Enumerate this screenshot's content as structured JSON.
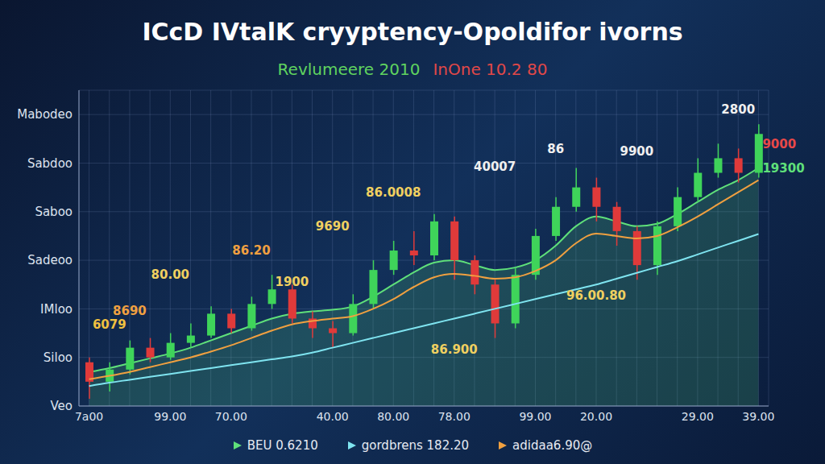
{
  "chart_data": {
    "type": "candlestick",
    "title": "ICcD IVtalK cryyptency-Opoldifor ivorns",
    "subtitle": [
      {
        "text": "Revlumeere 2010",
        "color": "#5fd35f"
      },
      {
        "text": "InOne 10.2 80",
        "color": "#e04848"
      }
    ],
    "categories": [
      "7a00",
      null,
      null,
      null,
      "99.00",
      null,
      null,
      "70.00",
      null,
      null,
      null,
      null,
      "40.00",
      null,
      null,
      "80.00",
      null,
      null,
      "78.00",
      null,
      null,
      null,
      "99.00",
      null,
      null,
      "20.00",
      null,
      null,
      null,
      null,
      "29.00",
      null,
      null,
      "39.00"
    ],
    "candles": {
      "open": [
        90,
        50,
        75,
        120,
        100,
        130,
        145,
        190,
        160,
        210,
        240,
        180,
        160,
        150,
        210,
        280,
        320,
        310,
        380,
        300,
        250,
        170,
        270,
        350,
        410,
        450,
        410,
        360,
        290,
        370,
        430,
        480,
        510,
        480
      ],
      "close": [
        50,
        75,
        120,
        100,
        130,
        145,
        190,
        160,
        210,
        240,
        180,
        160,
        150,
        210,
        280,
        320,
        310,
        380,
        300,
        250,
        170,
        270,
        350,
        410,
        450,
        410,
        360,
        290,
        370,
        430,
        480,
        510,
        480,
        560
      ],
      "high": [
        100,
        90,
        135,
        140,
        150,
        170,
        205,
        200,
        225,
        270,
        250,
        195,
        175,
        230,
        300,
        340,
        360,
        395,
        390,
        310,
        260,
        285,
        365,
        430,
        490,
        470,
        420,
        370,
        380,
        450,
        510,
        540,
        530,
        580
      ],
      "low": [
        15,
        30,
        65,
        90,
        95,
        120,
        140,
        150,
        155,
        200,
        170,
        140,
        120,
        145,
        200,
        270,
        290,
        300,
        260,
        230,
        140,
        160,
        260,
        340,
        400,
        380,
        330,
        260,
        270,
        360,
        420,
        470,
        460,
        470
      ],
      "colors": [
        "#e03a3a",
        "#3fd45a",
        "#3fd45a",
        "#e03a3a",
        "#3fd45a",
        "#3fd45a",
        "#3fd45a",
        "#e03a3a",
        "#3fd45a",
        "#3fd45a",
        "#e03a3a",
        "#e03a3a",
        "#e03a3a",
        "#3fd45a",
        "#3fd45a",
        "#3fd45a",
        "#e03a3a",
        "#3fd45a",
        "#e03a3a",
        "#e03a3a",
        "#e03a3a",
        "#3fd45a",
        "#3fd45a",
        "#3fd45a",
        "#3fd45a",
        "#e03a3a",
        "#e03a3a",
        "#e03a3a",
        "#3fd45a",
        "#3fd45a",
        "#3fd45a",
        "#3fd45a",
        "#e03a3a",
        "#3fd45a"
      ]
    },
    "series": [
      {
        "name": "BEU 0.6210",
        "type": "area",
        "color": "#5fe07a",
        "values": [
          70,
          78,
          88,
          98,
          108,
          120,
          135,
          150,
          165,
          180,
          190,
          195,
          198,
          205,
          225,
          250,
          275,
          295,
          300,
          290,
          280,
          285,
          300,
          330,
          370,
          390,
          380,
          370,
          375,
          395,
          420,
          445,
          465,
          490
        ]
      },
      {
        "name": "gordbrens 182.20",
        "type": "line",
        "color": "#7fe4f0",
        "values": [
          41,
          48,
          54,
          60,
          66,
          72,
          78,
          84,
          90,
          96,
          102,
          110,
          120,
          130,
          140,
          150,
          160,
          170,
          180,
          190,
          200,
          210,
          220,
          230,
          240,
          250,
          262,
          274,
          286,
          298,
          312,
          326,
          340,
          354
        ]
      },
      {
        "name": "adidaa6.90@",
        "type": "line",
        "color": "#f0a040",
        "values": [
          55,
          62,
          70,
          80,
          90,
          100,
          112,
          125,
          140,
          155,
          168,
          175,
          180,
          185,
          200,
          220,
          245,
          265,
          272,
          268,
          262,
          265,
          278,
          300,
          335,
          355,
          350,
          345,
          350,
          368,
          390,
          415,
          440,
          465
        ]
      }
    ],
    "annotations": [
      {
        "text": "6079",
        "x": 1,
        "y": 168,
        "color": "#f0c040"
      },
      {
        "text": "8690",
        "x": 2,
        "y": 196,
        "color": "#f0a040"
      },
      {
        "text": "80.00",
        "x": 4,
        "y": 270,
        "color": "#f0d060"
      },
      {
        "text": "86.20",
        "x": 8,
        "y": 321,
        "color": "#f0a040"
      },
      {
        "text": "1900",
        "x": 10,
        "y": 256,
        "color": "#f0d060"
      },
      {
        "text": "9690",
        "x": 12,
        "y": 370,
        "color": "#f0d060"
      },
      {
        "text": "86.0008",
        "x": 15,
        "y": 440,
        "color": "#f0d060"
      },
      {
        "text": "86.900",
        "x": 18,
        "y": 116,
        "color": "#f0d060"
      },
      {
        "text": "40007",
        "x": 20,
        "y": 493,
        "color": "#f0f0f0"
      },
      {
        "text": "86",
        "x": 23,
        "y": 530,
        "color": "#f0f0f0"
      },
      {
        "text": "96.00.80",
        "x": 25,
        "y": 227,
        "color": "#f0d060"
      },
      {
        "text": "9900",
        "x": 27,
        "y": 524,
        "color": "#f0f0f0"
      },
      {
        "text": "2800",
        "x": 32,
        "y": 610,
        "color": "#f0f0f0"
      },
      {
        "text": "9000",
        "x": 33,
        "y": 540,
        "color": "#e84848"
      },
      {
        "text": "19300",
        "x": 33,
        "y": 490,
        "color": "#5fe07a"
      }
    ],
    "ylim": [
      0,
      650
    ],
    "yticks": [
      {
        "value": 0,
        "label": "Veo"
      },
      {
        "value": 100,
        "label": "Siloo"
      },
      {
        "value": 200,
        "label": "IMloo"
      },
      {
        "value": 300,
        "label": "Sadeoo"
      },
      {
        "value": 400,
        "label": "Saboo"
      },
      {
        "value": 500,
        "label": "Sabdoo"
      },
      {
        "value": 600,
        "label": "Mabodeo"
      }
    ],
    "grid": true,
    "legend": "bottom"
  }
}
